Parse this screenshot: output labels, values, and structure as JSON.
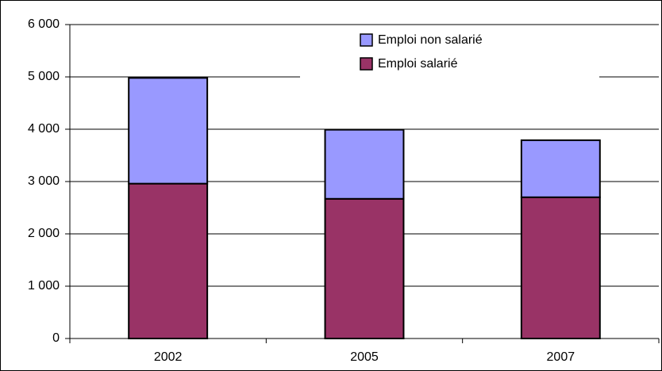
{
  "chart_data": {
    "type": "stacked-bar",
    "categories": [
      "2002",
      "2005",
      "2007"
    ],
    "series": [
      {
        "name": "Emploi salarié",
        "color": "#993366",
        "values": [
          2960,
          2670,
          2700
        ]
      },
      {
        "name": "Emploi non salarié",
        "color": "#9999ff",
        "values": [
          2020,
          1320,
          1090
        ]
      }
    ],
    "ylim": [
      0,
      6000
    ],
    "yticks": [
      0,
      {
        "value": 1000,
        "label": "1 000"
      },
      {
        "value": 2000,
        "label": "2 000"
      },
      {
        "value": 3000,
        "label": "3 000"
      },
      {
        "value": 4000,
        "label": "4 000"
      },
      {
        "value": 5000,
        "label": "5 000"
      },
      {
        "value": 6000,
        "label": "6 000"
      }
    ],
    "grid": true,
    "legend": "top-center"
  }
}
